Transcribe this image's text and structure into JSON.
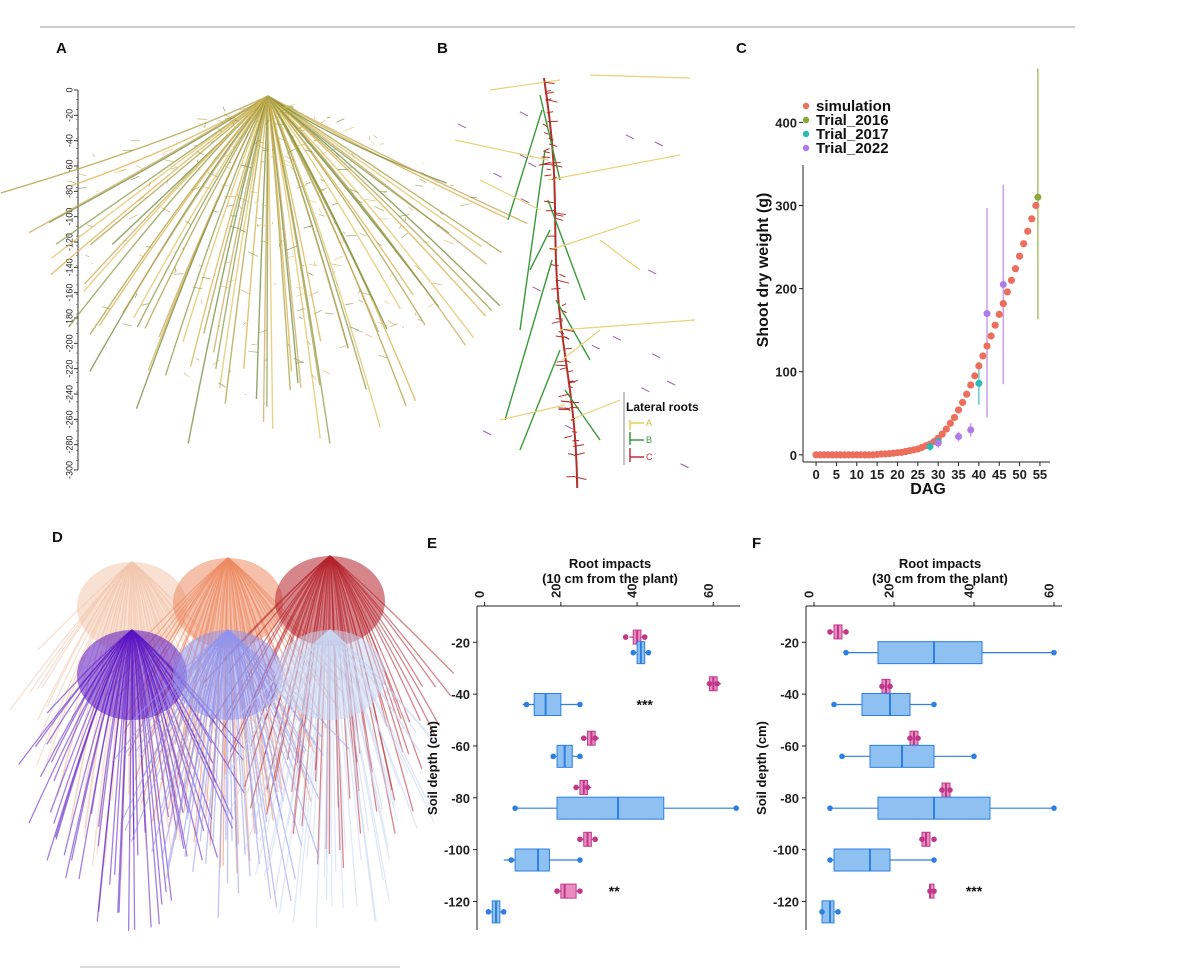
{
  "panels": {
    "a": {
      "label": "A",
      "depth_ticks": [
        "0",
        "-20",
        "-40",
        "-60",
        "-80",
        "-100",
        "-120",
        "-140",
        "-160",
        "-180",
        "-200",
        "-220",
        "-240",
        "-260",
        "-280",
        "-300"
      ]
    },
    "b": {
      "label": "B",
      "legend_title": "Lateral roots",
      "legend_items": [
        {
          "label": "A",
          "color": "#e9cf55"
        },
        {
          "label": "B",
          "color": "#3a9a3a"
        },
        {
          "label": "C",
          "color": "#c0303a"
        }
      ]
    },
    "c": {
      "label": "C"
    },
    "d": {
      "label": "D",
      "colors": [
        "#f2c7ad",
        "#ec8a62",
        "#b4222c",
        "#5a14c4",
        "#8f94ee",
        "#c9d6f2"
      ]
    },
    "e": {
      "label": "E",
      "title_line1": "Root impacts",
      "title_line2": "(10 cm from the plant)"
    },
    "f": {
      "label": "F",
      "title_line1": "Root impacts",
      "title_line2": "(30 cm from the plant)"
    }
  },
  "chart_data": [
    {
      "id": "C",
      "type": "scatter",
      "xlabel": "DAG",
      "ylabel": "Shoot dry weight (g)",
      "xlim": [
        -1,
        56
      ],
      "ylim": [
        -5,
        380
      ],
      "xticks": [
        "0",
        "5",
        "10",
        "15",
        "20",
        "25",
        "30",
        "35",
        "40",
        "45",
        "50",
        "55"
      ],
      "yticks": [
        "0",
        "100",
        "200",
        "300",
        "400"
      ],
      "legend_position": "top-left",
      "series": [
        {
          "name": "simulation",
          "color": "#ec6f5d",
          "marker_size": 3.6,
          "x": [
            0,
            1,
            2,
            3,
            4,
            5,
            6,
            7,
            8,
            9,
            10,
            11,
            12,
            13,
            14,
            15,
            16,
            17,
            18,
            19,
            20,
            21,
            22,
            23,
            24,
            25,
            26,
            27,
            28,
            29,
            30,
            31,
            32,
            33,
            34,
            35,
            36,
            37,
            38,
            39,
            40,
            41,
            42,
            43,
            44,
            45,
            46,
            47,
            48,
            49,
            50,
            51,
            52,
            53,
            54
          ],
          "y": [
            0,
            0,
            0,
            0,
            0,
            0,
            0,
            0,
            0,
            0,
            0,
            0,
            0,
            0,
            0,
            0.5,
            1,
            1,
            1.5,
            2,
            2.5,
            3,
            4,
            5,
            6,
            7,
            9,
            11,
            13,
            16,
            20,
            25,
            31,
            38,
            45,
            54,
            63,
            73,
            84,
            95,
            107,
            119,
            131,
            143,
            156,
            169,
            182,
            196,
            210,
            224,
            239,
            254,
            269,
            284,
            300
          ]
        },
        {
          "name": "Trial_2016",
          "color": "#8aa836",
          "x": [
            54.5
          ],
          "y": [
            310
          ],
          "err_low": [
            163
          ],
          "err_high": [
            465
          ]
        },
        {
          "name": "Trial_2017",
          "color": "#2bb8b8",
          "x": [
            28,
            30,
            40
          ],
          "y": [
            10,
            16,
            86
          ],
          "err_low": [
            5,
            12,
            60
          ],
          "err_high": [
            15,
            20,
            112
          ]
        },
        {
          "name": "Trial_2022",
          "color": "#b07ae8",
          "x": [
            30,
            35,
            38,
            42,
            46
          ],
          "y": [
            14,
            22,
            30,
            170,
            205
          ],
          "err_low": [
            8,
            16,
            22,
            45,
            85
          ],
          "err_high": [
            20,
            28,
            38,
            297,
            325
          ]
        }
      ]
    },
    {
      "id": "E",
      "type": "boxplot",
      "title": "Root impacts\n(10 cm from the plant)",
      "xlabel": "Root impacts",
      "ylabel": "Soil depth (cm)",
      "xlim": [
        -2,
        67
      ],
      "ylim": [
        -131,
        -6
      ],
      "xticks": [
        "0",
        "20",
        "40",
        "60"
      ],
      "yticks": [
        "-20",
        "-40",
        "-60",
        "-80",
        "-100",
        "-120"
      ],
      "groups": [
        {
          "name": "magenta",
          "color": "#c0388a",
          "fill": "#e98cc2",
          "depth": [
            -18,
            -36,
            -57,
            -76,
            -96,
            -116
          ],
          "q1": [
            39,
            59,
            27,
            25,
            26,
            20
          ],
          "median": [
            40,
            60,
            28,
            26,
            27,
            21
          ],
          "q3": [
            41,
            61,
            29,
            27,
            28,
            24
          ],
          "wmin": [
            38,
            59,
            26,
            24,
            25,
            19
          ],
          "wmax": [
            42,
            62,
            30,
            28,
            29,
            25
          ],
          "points": [
            [
              37,
              42
            ],
            [
              59,
              61
            ],
            [
              26,
              29
            ],
            [
              24,
              27
            ],
            [
              25,
              29
            ],
            [
              19,
              25
            ]
          ]
        },
        {
          "name": "blue",
          "color": "#2d7fe0",
          "fill": "#8fc0f2",
          "depth": [
            -24,
            -44,
            -64,
            -84,
            -104,
            -124
          ],
          "q1": [
            40,
            13,
            19,
            19,
            8,
            2
          ],
          "median": [
            41,
            16,
            21,
            35,
            14,
            3
          ],
          "q3": [
            42,
            20,
            23,
            47,
            17,
            4
          ],
          "wmin": [
            39,
            10,
            18,
            8,
            5,
            1
          ],
          "wmax": [
            43,
            25,
            25,
            66,
            25,
            5
          ],
          "points": [
            [
              39,
              43
            ],
            [
              11,
              25
            ],
            [
              18,
              25
            ],
            [
              8,
              66
            ],
            [
              7,
              25
            ],
            [
              1,
              5
            ]
          ]
        }
      ],
      "annotations": [
        {
          "text": "***",
          "x": 42,
          "y": -44
        },
        {
          "text": "**",
          "x": 34,
          "y": -116
        }
      ]
    },
    {
      "id": "F",
      "type": "boxplot",
      "title": "Root impacts\n(30 cm from the plant)",
      "xlabel": "Root impacts",
      "ylabel": "Soil depth (cm)",
      "xlim": [
        -2,
        62
      ],
      "ylim": [
        -131,
        -6
      ],
      "xticks": [
        "0",
        "20",
        "40",
        "60"
      ],
      "yticks": [
        "-20",
        "-40",
        "-60",
        "-80",
        "-100",
        "-120"
      ],
      "groups": [
        {
          "name": "magenta",
          "color": "#c0388a",
          "fill": "#e98cc2",
          "depth": [
            -16,
            -37,
            -57,
            -77,
            -96,
            -116
          ],
          "q1": [
            5,
            17,
            24,
            32,
            27,
            29
          ],
          "median": [
            6,
            18,
            25,
            33,
            28,
            29
          ],
          "q3": [
            7,
            19,
            26,
            34,
            29,
            30
          ],
          "wmin": [
            4,
            17,
            24,
            32,
            27,
            29
          ],
          "wmax": [
            8,
            19,
            26,
            34,
            29,
            30
          ],
          "points": [
            [
              4,
              8
            ],
            [
              17,
              19
            ],
            [
              24,
              26
            ],
            [
              32,
              34
            ],
            [
              27,
              30
            ],
            [
              29,
              30
            ]
          ]
        },
        {
          "name": "blue",
          "color": "#2d7fe0",
          "fill": "#8fc0f2",
          "depth": [
            -24,
            -44,
            -64,
            -84,
            -104,
            -124
          ],
          "q1": [
            16,
            12,
            14,
            16,
            5,
            2
          ],
          "median": [
            30,
            19,
            22,
            30,
            14,
            4
          ],
          "q3": [
            42,
            24,
            30,
            44,
            19,
            5
          ],
          "wmin": [
            8,
            5,
            7,
            4,
            4,
            2
          ],
          "wmax": [
            60,
            30,
            40,
            60,
            30,
            6
          ],
          "points": [
            [
              8,
              60
            ],
            [
              5,
              30
            ],
            [
              7,
              40
            ],
            [
              4,
              60
            ],
            [
              4,
              30
            ],
            [
              2,
              6
            ]
          ]
        }
      ],
      "annotations": [
        {
          "text": "***",
          "x": 40,
          "y": -116
        }
      ]
    }
  ]
}
